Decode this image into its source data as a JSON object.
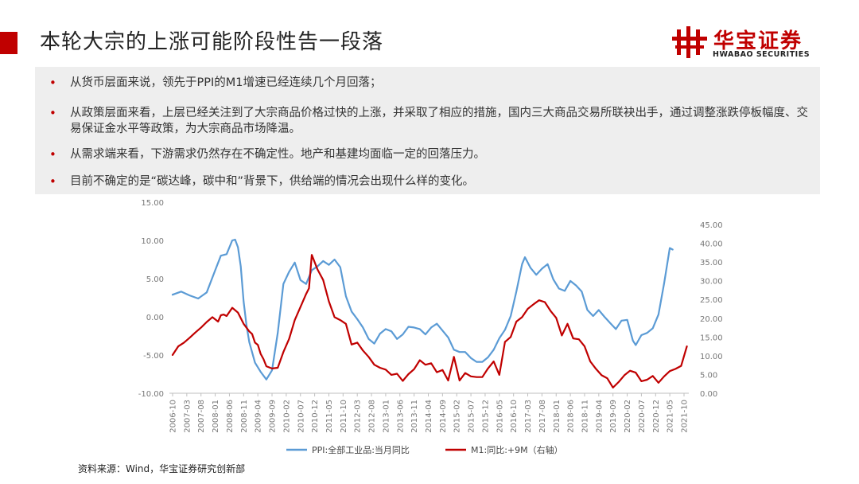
{
  "header": {
    "title": "本轮大宗的上涨可能阶段性告一段落",
    "accent_color": "#c00000"
  },
  "logo": {
    "name_cn": "华宝证券",
    "name_en": "HWABAO SECURITIES"
  },
  "bullets": [
    "从货币层面来说，领先于PPI的M1增速已经连续几个月回落；",
    "从政策层面来看，上层已经关注到了大宗商品价格过快的上涨，并采取了相应的措施，国内三大商品交易所联袂出手，通过调整涨跌停板幅度、交易保证金水平等政策，为大宗商品市场降温。",
    "从需求端来看，下游需求仍然存在不确定性。地产和基建均面临一定的回落压力。",
    "目前不确定的是“碳达峰，碳中和”背景下，供给端的情况会出现什么样的变化。"
  ],
  "source": "资料来源：Wind，华宝证券研究创新部",
  "chart_data": {
    "type": "line",
    "x_tick_labels": [
      "2006-10",
      "2007-03",
      "2007-08",
      "2008-01",
      "2008-06",
      "2008-11",
      "2009-04",
      "2009-09",
      "2010-02",
      "2010-07",
      "2010-12",
      "2011-05",
      "2011-10",
      "2012-03",
      "2012-08",
      "2013-01",
      "2013-06",
      "2013-11",
      "2014-04",
      "2014-09",
      "2015-02",
      "2015-07",
      "2015-12",
      "2016-05",
      "2016-10",
      "2017-03",
      "2017-08",
      "2018-01",
      "2018-06",
      "2018-11",
      "2019-04",
      "2019-09",
      "2020-02",
      "2020-07",
      "2020-12",
      "2021-05",
      "2021-10"
    ],
    "y_left": {
      "ticks": [
        "15.00",
        "10.00",
        "5.00",
        "0.00",
        "-5.00",
        "-10.00"
      ],
      "range": [
        -10,
        15
      ]
    },
    "y_right": {
      "ticks": [
        "45.00",
        "40.00",
        "35.00",
        "30.00",
        "25.00",
        "20.00",
        "15.00",
        "10.00",
        "5.00",
        "0.00"
      ],
      "range": [
        0,
        45
      ]
    },
    "series": [
      {
        "name": "PPI:全部工业品:当月同比",
        "axis": "left",
        "color": "#5b9bd5",
        "x": [
          "2006-10",
          "2007-01",
          "2007-04",
          "2007-07",
          "2007-10",
          "2008-01",
          "2008-03",
          "2008-05",
          "2008-07",
          "2008-08",
          "2008-09",
          "2008-10",
          "2008-11",
          "2008-12",
          "2009-01",
          "2009-03",
          "2009-05",
          "2009-07",
          "2009-09",
          "2009-11",
          "2010-01",
          "2010-03",
          "2010-05",
          "2010-07",
          "2010-09",
          "2010-11",
          "2011-01",
          "2011-03",
          "2011-05",
          "2011-07",
          "2011-09",
          "2011-11",
          "2012-01",
          "2012-03",
          "2012-05",
          "2012-07",
          "2012-09",
          "2012-11",
          "2013-01",
          "2013-03",
          "2013-05",
          "2013-07",
          "2013-09",
          "2013-11",
          "2014-01",
          "2014-03",
          "2014-05",
          "2014-07",
          "2014-09",
          "2014-11",
          "2015-01",
          "2015-03",
          "2015-05",
          "2015-07",
          "2015-09",
          "2015-11",
          "2016-01",
          "2016-03",
          "2016-05",
          "2016-07",
          "2016-09",
          "2016-11",
          "2017-01",
          "2017-02",
          "2017-04",
          "2017-06",
          "2017-08",
          "2017-10",
          "2017-12",
          "2018-02",
          "2018-04",
          "2018-06",
          "2018-08",
          "2018-10",
          "2018-12",
          "2019-02",
          "2019-04",
          "2019-06",
          "2019-08",
          "2019-10",
          "2019-12",
          "2020-02",
          "2020-04",
          "2020-05",
          "2020-07",
          "2020-09",
          "2020-11",
          "2021-01",
          "2021-03",
          "2021-05",
          "2021-06"
        ],
        "y": [
          2.9,
          3.3,
          2.8,
          2.4,
          3.2,
          6.1,
          8.0,
          8.2,
          10.0,
          10.1,
          9.1,
          6.6,
          2.0,
          -1.1,
          -3.3,
          -6.0,
          -7.2,
          -8.2,
          -7.0,
          -2.1,
          4.3,
          5.9,
          7.1,
          4.8,
          4.3,
          6.1,
          6.6,
          7.3,
          6.8,
          7.5,
          6.5,
          2.7,
          0.7,
          -0.3,
          -1.4,
          -2.9,
          -3.5,
          -2.2,
          -1.6,
          -1.9,
          -2.9,
          -2.3,
          -1.3,
          -1.4,
          -1.6,
          -2.3,
          -1.4,
          -0.9,
          -1.8,
          -2.7,
          -4.3,
          -4.6,
          -4.6,
          -5.4,
          -5.9,
          -5.9,
          -5.3,
          -4.3,
          -2.8,
          -1.7,
          0.1,
          3.3,
          6.9,
          7.8,
          6.4,
          5.5,
          6.3,
          6.9,
          4.9,
          3.7,
          3.4,
          4.7,
          4.1,
          3.3,
          0.9,
          0.1,
          0.9,
          0.0,
          -0.8,
          -1.6,
          -0.5,
          -0.4,
          -3.1,
          -3.7,
          -2.4,
          -2.1,
          -1.5,
          0.3,
          4.4,
          9.0,
          8.8
        ]
      },
      {
        "name": "M1:同比:+9M（右轴）",
        "axis": "right",
        "color": "#c00000",
        "x": [
          "2006-10",
          "2006-12",
          "2007-02",
          "2007-04",
          "2007-06",
          "2007-08",
          "2007-10",
          "2007-12",
          "2008-02",
          "2008-03",
          "2008-04",
          "2008-05",
          "2008-07",
          "2008-09",
          "2008-11",
          "2009-01",
          "2009-02",
          "2009-03",
          "2009-04",
          "2009-05",
          "2009-06",
          "2009-07",
          "2009-09",
          "2009-11",
          "2010-01",
          "2010-03",
          "2010-05",
          "2010-07",
          "2010-09",
          "2010-10",
          "2010-11",
          "2011-01",
          "2011-03",
          "2011-05",
          "2011-07",
          "2011-09",
          "2011-11",
          "2012-01",
          "2012-03",
          "2012-05",
          "2012-07",
          "2012-09",
          "2012-11",
          "2013-01",
          "2013-03",
          "2013-05",
          "2013-07",
          "2013-09",
          "2013-11",
          "2014-01",
          "2014-03",
          "2014-05",
          "2014-07",
          "2014-09",
          "2014-11",
          "2015-01",
          "2015-03",
          "2015-05",
          "2015-07",
          "2015-09",
          "2015-11",
          "2016-01",
          "2016-03",
          "2016-05",
          "2016-07",
          "2016-09",
          "2016-11",
          "2017-01",
          "2017-03",
          "2017-05",
          "2017-07",
          "2017-09",
          "2017-11",
          "2018-01",
          "2018-03",
          "2018-05",
          "2018-07",
          "2018-09",
          "2018-11",
          "2019-01",
          "2019-03",
          "2019-05",
          "2019-07",
          "2019-09",
          "2019-11",
          "2020-01",
          "2020-03",
          "2020-05",
          "2020-07",
          "2020-09",
          "2020-11",
          "2021-01",
          "2021-03",
          "2021-05",
          "2021-07",
          "2021-09",
          "2021-11"
        ],
        "y": [
          10.2,
          12.5,
          13.5,
          14.8,
          16.2,
          17.5,
          19.0,
          20.3,
          19.1,
          20.8,
          21.0,
          20.6,
          22.8,
          21.5,
          18.5,
          16.5,
          15.8,
          13.5,
          12.9,
          10.5,
          9.1,
          7.2,
          6.6,
          6.8,
          11.0,
          14.5,
          19.5,
          23.0,
          26.5,
          28.0,
          36.9,
          33.0,
          30.2,
          24.5,
          20.3,
          19.5,
          18.5,
          13.0,
          13.5,
          11.4,
          9.7,
          7.6,
          6.8,
          6.3,
          4.9,
          5.2,
          3.3,
          5.1,
          6.4,
          8.8,
          7.6,
          8.0,
          5.6,
          6.2,
          3.4,
          9.7,
          3.4,
          5.4,
          4.5,
          4.3,
          4.3,
          6.6,
          8.5,
          4.9,
          13.7,
          15.0,
          19.1,
          20.3,
          22.5,
          23.7,
          24.8,
          24.3,
          22.0,
          20.1,
          15.4,
          18.5,
          14.6,
          14.4,
          12.5,
          8.5,
          6.5,
          4.8,
          4.0,
          1.5,
          3.0,
          4.8,
          6.0,
          5.5,
          3.2,
          3.6,
          4.6,
          2.8,
          4.5,
          5.9,
          6.5,
          7.3,
          12.5
        ]
      }
    ]
  }
}
